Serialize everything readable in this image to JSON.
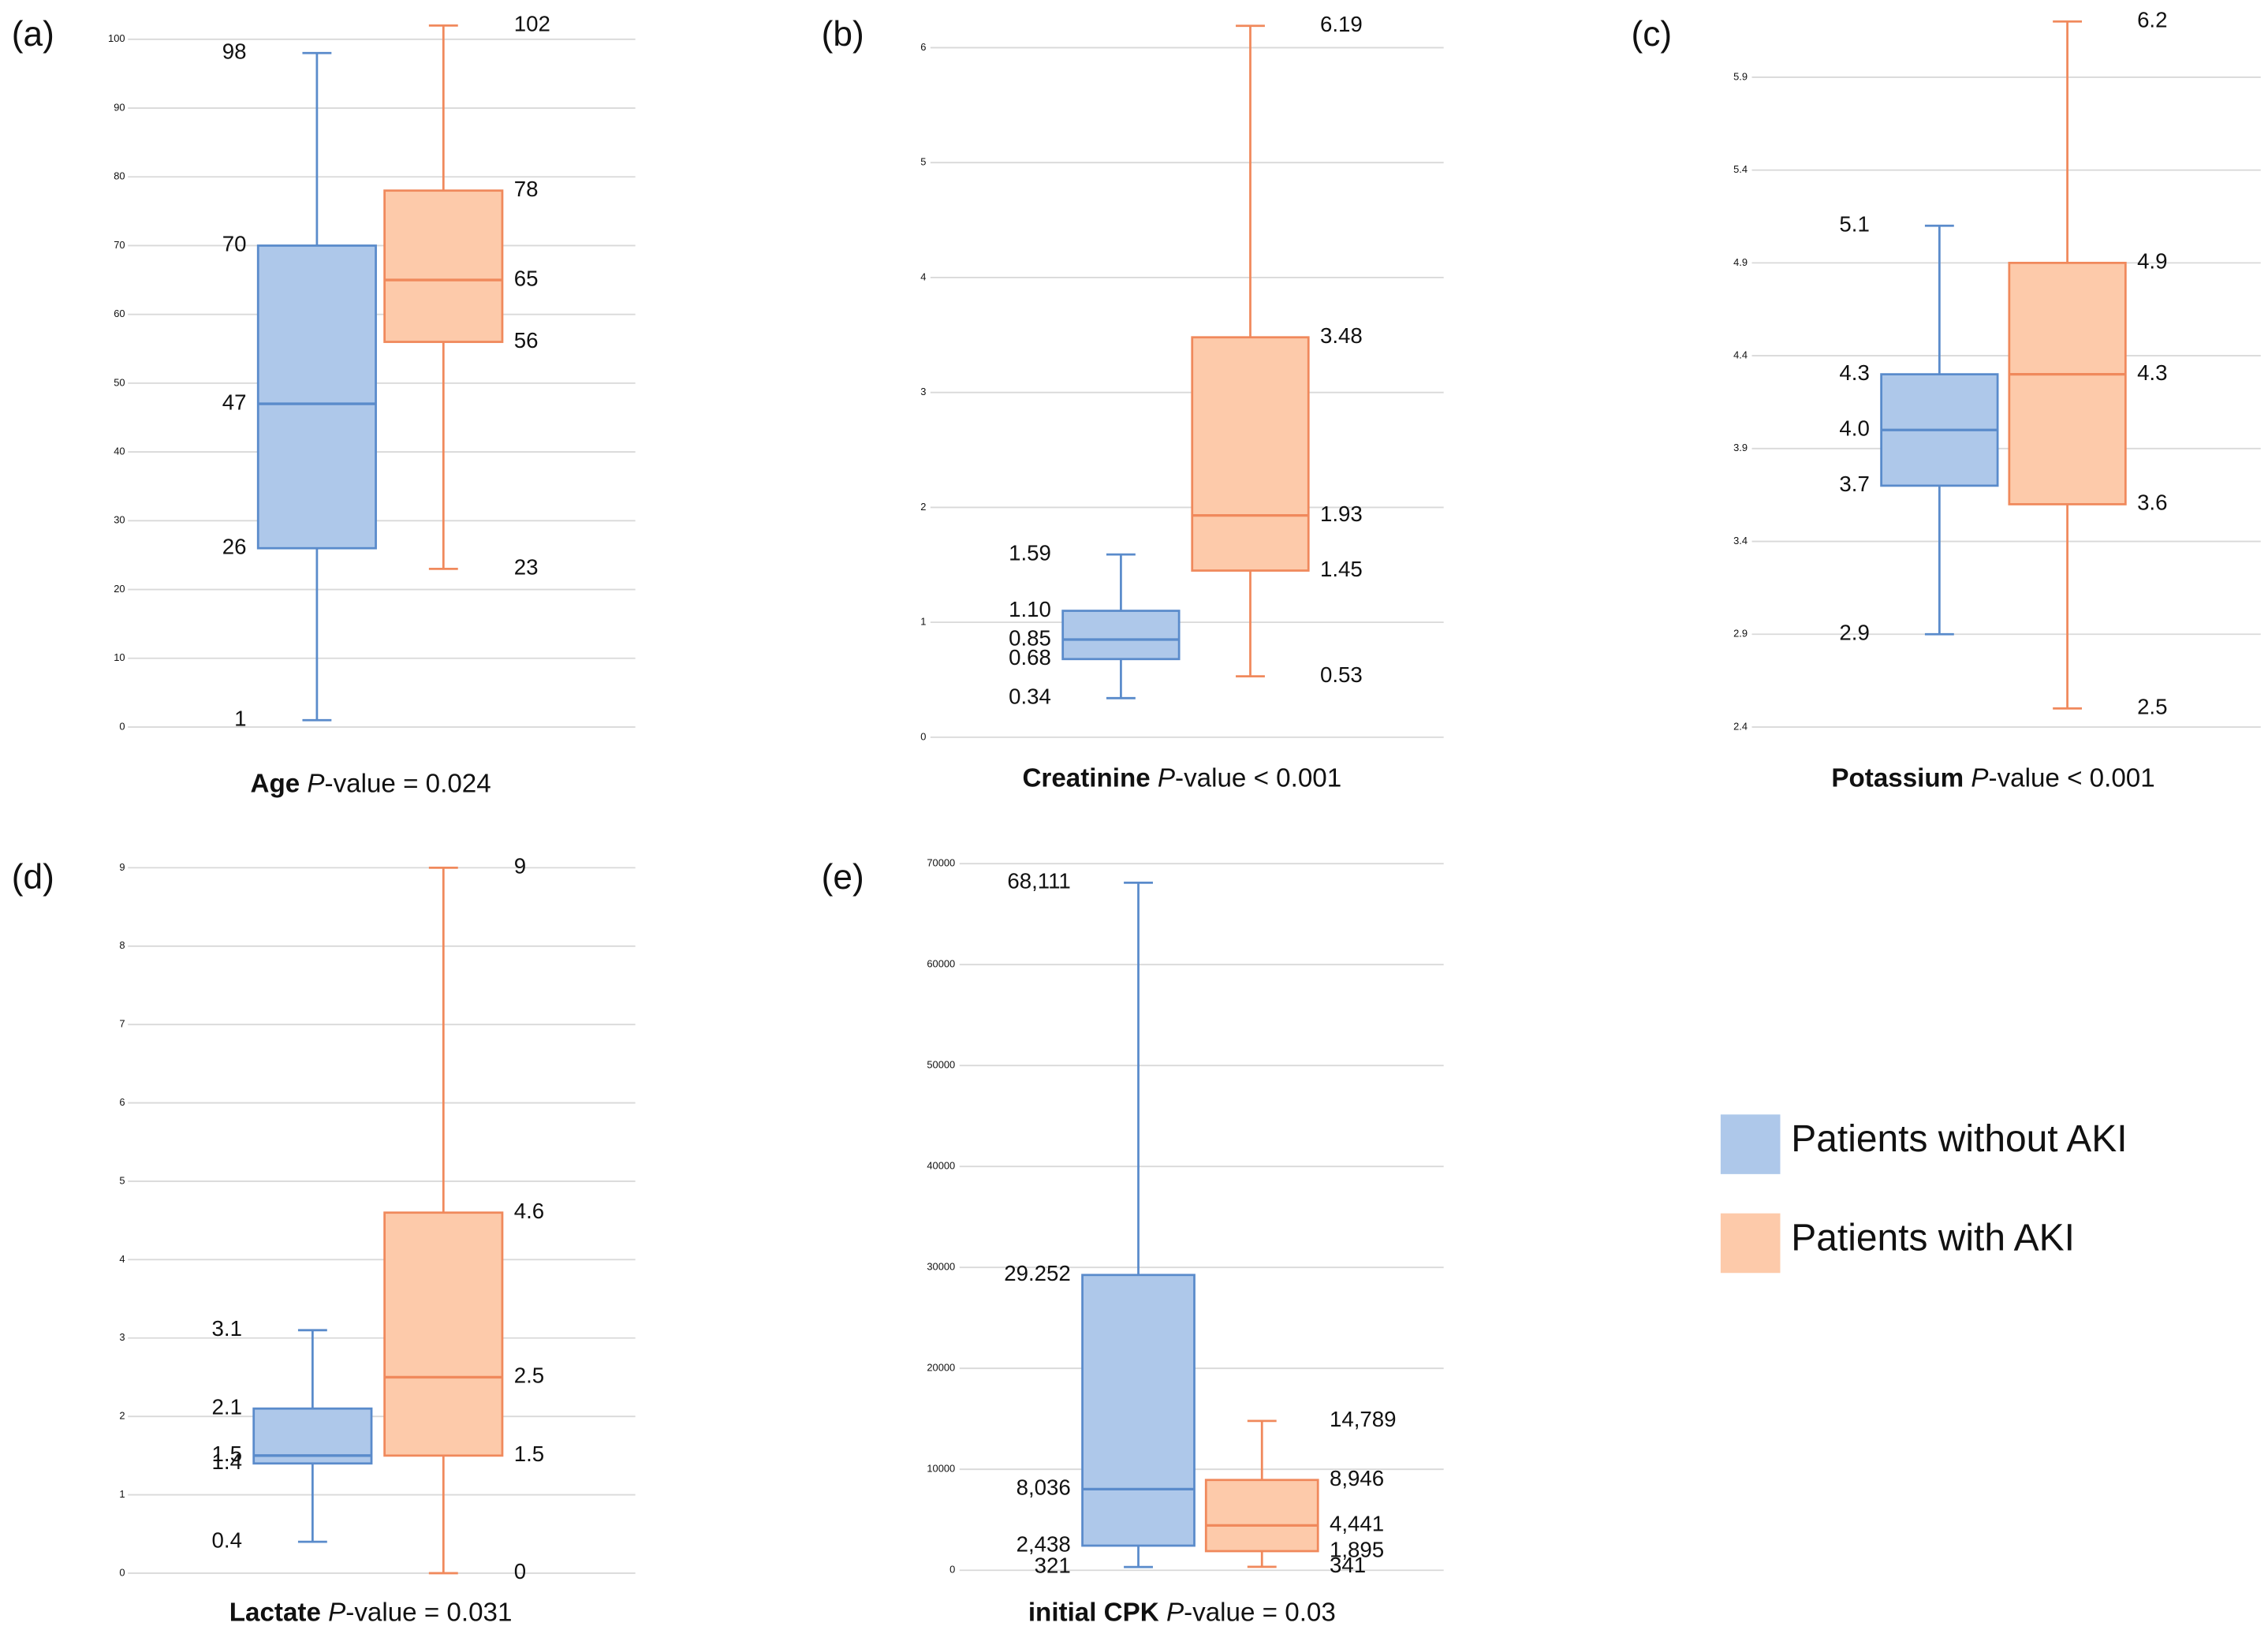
{
  "legend_series": 0,
  "chart_data": [
    {
      "type": "box",
      "panel_label": "(a)",
      "title": "Age",
      "stat_symbol": "P",
      "stat_text": "-value = 0.024",
      "ylim": [
        0,
        104
      ],
      "yticks": [
        0,
        10,
        20,
        30,
        40,
        50,
        60,
        70,
        80,
        90,
        100
      ],
      "grid": true,
      "series": [
        {
          "name": "Patients without AKI",
          "color": "#aec8ea",
          "edge_color": "#5a8bcb",
          "values": [
            1,
            26,
            47,
            70,
            98
          ]
        },
        {
          "name": "Patients with AKI",
          "color": "#fdcaaa",
          "edge_color": "#f0895c",
          "values": [
            23,
            56,
            65,
            78,
            102
          ]
        }
      ]
    },
    {
      "type": "box",
      "panel_label": "(b)",
      "title": "Creatinine",
      "stat_symbol": "P",
      "stat_text": "-value < 0.001",
      "ylim": [
        0,
        6.3
      ],
      "yticks": [
        0,
        1,
        2,
        3,
        4,
        5,
        6
      ],
      "grid": true,
      "series": [
        {
          "color": "#aec8ea",
          "edge_color": "#5a8bcb",
          "values": [
            0.34,
            0.68,
            0.85,
            1.1,
            1.59
          ],
          "value_labels": [
            "0.34",
            "0.68",
            "0.85",
            "1.10",
            "1.59"
          ]
        },
        {
          "color": "#fdcaaa",
          "edge_color": "#f0895c",
          "values": [
            0.53,
            1.45,
            1.93,
            3.48,
            6.19
          ]
        }
      ]
    },
    {
      "type": "box",
      "panel_label": "(c)",
      "title": "Potassium",
      "stat_symbol": "P",
      "stat_text": "-value < 0.001",
      "ylim": [
        2.4,
        6.28
      ],
      "yticks": [
        2.4,
        2.9,
        3.4,
        3.9,
        4.4,
        4.9,
        5.4,
        5.9
      ],
      "grid": true,
      "series": [
        {
          "color": "#aec8ea",
          "edge_color": "#5a8bcb",
          "values": [
            2.9,
            3.7,
            4.0,
            4.3,
            5.1
          ],
          "value_labels": [
            "2.9",
            "3.7",
            "4.0",
            "4.3",
            "5.1"
          ]
        },
        {
          "color": "#fdcaaa",
          "edge_color": "#f0895c",
          "values": [
            2.5,
            3.6,
            4.3,
            4.9,
            6.2
          ]
        }
      ]
    },
    {
      "type": "box",
      "panel_label": "(d)",
      "title": "Lactate",
      "stat_symbol": "P",
      "stat_text": "-value = 0.031",
      "ylim": [
        0,
        9.2
      ],
      "yticks": [
        0,
        1,
        2,
        3,
        4,
        5,
        6,
        7,
        8,
        9
      ],
      "grid": true,
      "series": [
        {
          "color": "#aec8ea",
          "edge_color": "#5a8bcb",
          "values": [
            0.4,
            1.4,
            1.5,
            2.1,
            3.1
          ]
        },
        {
          "color": "#fdcaaa",
          "edge_color": "#f0895c",
          "values": [
            0,
            1.5,
            2.5,
            4.6,
            9
          ]
        }
      ]
    },
    {
      "type": "box",
      "panel_label": "(e)",
      "title": "initial CPK",
      "stat_symbol": "P",
      "stat_text": "-value = 0.03",
      "ylim": [
        0,
        71000
      ],
      "yticks": [
        0,
        10000,
        20000,
        30000,
        40000,
        50000,
        60000,
        70000
      ],
      "grid": true,
      "series": [
        {
          "color": "#aec8ea",
          "edge_color": "#5a8bcb",
          "values": [
            321,
            2438,
            8036,
            29252,
            68111
          ],
          "value_labels": [
            "321",
            "2,438",
            "8,036",
            "29.252",
            "68,111"
          ]
        },
        {
          "color": "#fdcaaa",
          "edge_color": "#f0895c",
          "values": [
            341,
            1895,
            4441,
            8946,
            14789
          ],
          "value_labels": [
            "341",
            "1,895",
            "4,441",
            "8,946",
            "14,789"
          ]
        }
      ]
    }
  ]
}
